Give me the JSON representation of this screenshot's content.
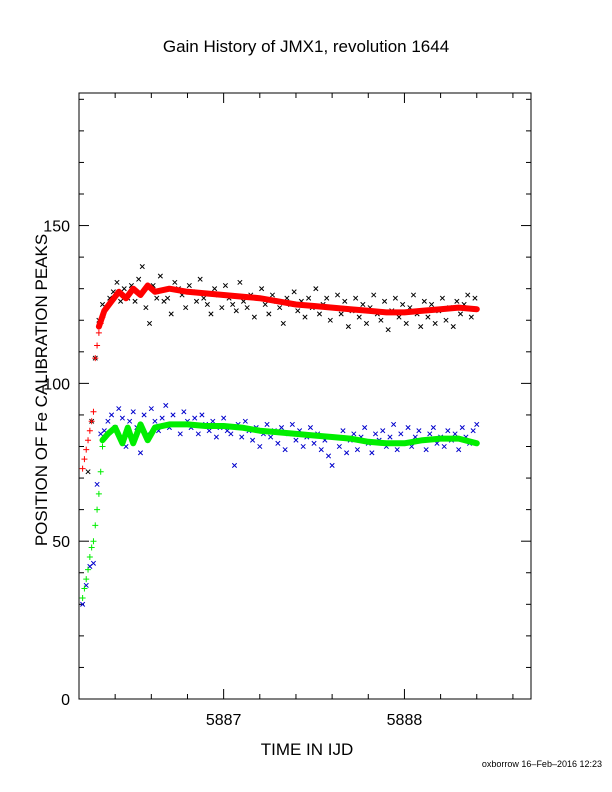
{
  "chart_data": {
    "type": "scatter",
    "title": "Gain History of JMX1, revolution 1644",
    "xlabel": "TIME IN IJD",
    "ylabel": "POSITION OF Fe CALIBRATION PEAKS",
    "xlim": [
      5886.2,
      5888.7
    ],
    "ylim": [
      0,
      192
    ],
    "x_ticks": [
      5887,
      5888
    ],
    "x_tick_labels": [
      "5887",
      "5888"
    ],
    "y_ticks": [
      0,
      50,
      100,
      150
    ],
    "y_tick_labels": [
      "0",
      "50",
      "100",
      "150"
    ],
    "grid": false,
    "footer": "oxborrow 16–Feb–2016 12:23",
    "colors": {
      "black": "#000000",
      "red": "#ff0000",
      "blue": "#0000cc",
      "green": "#00ee00"
    },
    "series": [
      {
        "marker": "x",
        "color": "#000000",
        "x": [
          5886.25,
          5886.27,
          5886.29,
          5886.31,
          5886.33,
          5886.35,
          5886.37,
          5886.39,
          5886.41,
          5886.43,
          5886.45,
          5886.47,
          5886.49,
          5886.51,
          5886.53,
          5886.55,
          5886.57,
          5886.59,
          5886.61,
          5886.63,
          5886.65,
          5886.67,
          5886.69,
          5886.71,
          5886.73,
          5886.75,
          5886.77,
          5886.79,
          5886.81,
          5886.83,
          5886.85,
          5886.87,
          5886.89,
          5886.91,
          5886.93,
          5886.95,
          5886.97,
          5886.99,
          5887.01,
          5887.03,
          5887.05,
          5887.07,
          5887.09,
          5887.11,
          5887.13,
          5887.15,
          5887.17,
          5887.19,
          5887.21,
          5887.23,
          5887.25,
          5887.27,
          5887.29,
          5887.31,
          5887.33,
          5887.35,
          5887.37,
          5887.39,
          5887.41,
          5887.43,
          5887.45,
          5887.47,
          5887.49,
          5887.51,
          5887.53,
          5887.55,
          5887.57,
          5887.59,
          5887.61,
          5887.63,
          5887.65,
          5887.67,
          5887.69,
          5887.71,
          5887.73,
          5887.75,
          5887.77,
          5887.79,
          5887.81,
          5887.83,
          5887.85,
          5887.87,
          5887.89,
          5887.91,
          5887.93,
          5887.95,
          5887.97,
          5887.99,
          5888.01,
          5888.03,
          5888.05,
          5888.07,
          5888.09,
          5888.11,
          5888.13,
          5888.15,
          5888.17,
          5888.19,
          5888.21,
          5888.23,
          5888.25,
          5888.27,
          5888.29,
          5888.31,
          5888.33,
          5888.35,
          5888.37,
          5888.39
        ],
        "y": [
          72,
          88,
          108,
          120,
          125,
          124,
          127,
          129,
          132,
          126,
          130,
          127,
          131,
          126,
          133,
          137,
          124,
          119,
          131,
          127,
          134,
          126,
          127,
          122,
          132,
          130,
          128,
          124,
          131,
          129,
          126,
          133,
          127,
          125,
          122,
          130,
          128,
          124,
          131,
          127,
          125,
          123,
          132,
          126,
          124,
          128,
          121,
          127,
          130,
          125,
          122,
          128,
          126,
          124,
          119,
          127,
          125,
          129,
          123,
          126,
          121,
          127,
          124,
          130,
          122,
          125,
          127,
          120,
          124,
          128,
          122,
          126,
          118,
          123,
          127,
          121,
          125,
          119,
          124,
          128,
          122,
          120,
          126,
          117,
          123,
          127,
          121,
          125,
          119,
          124,
          128,
          122,
          118,
          126,
          121,
          125,
          119,
          123,
          127,
          120,
          124,
          118,
          126,
          122,
          125,
          128,
          121,
          127
        ]
      },
      {
        "marker": "+",
        "color": "#ff0000",
        "x": [
          5886.22,
          5886.23,
          5886.24,
          5886.25,
          5886.26,
          5886.27,
          5886.28,
          5886.29,
          5886.3,
          5886.31,
          5886.32,
          5886.33
        ],
        "y": [
          73,
          76,
          79,
          82,
          85,
          88,
          91,
          108,
          112,
          116,
          119,
          121
        ]
      },
      {
        "marker": "x",
        "color": "#0000cc",
        "x": [
          5886.22,
          5886.24,
          5886.26,
          5886.28,
          5886.3,
          5886.32,
          5886.34,
          5886.36,
          5886.38,
          5886.4,
          5886.42,
          5886.44,
          5886.46,
          5886.48,
          5886.5,
          5886.52,
          5886.54,
          5886.56,
          5886.58,
          5886.6,
          5886.62,
          5886.64,
          5886.66,
          5886.68,
          5886.7,
          5886.72,
          5886.74,
          5886.76,
          5886.78,
          5886.8,
          5886.82,
          5886.84,
          5886.86,
          5886.88,
          5886.9,
          5886.92,
          5886.94,
          5886.96,
          5886.98,
          5887.0,
          5887.02,
          5887.04,
          5887.06,
          5887.08,
          5887.1,
          5887.12,
          5887.14,
          5887.16,
          5887.18,
          5887.2,
          5887.22,
          5887.24,
          5887.26,
          5887.28,
          5887.3,
          5887.32,
          5887.34,
          5887.36,
          5887.38,
          5887.4,
          5887.42,
          5887.44,
          5887.46,
          5887.48,
          5887.5,
          5887.52,
          5887.54,
          5887.56,
          5887.58,
          5887.6,
          5887.62,
          5887.64,
          5887.66,
          5887.68,
          5887.7,
          5887.72,
          5887.74,
          5887.76,
          5887.78,
          5887.8,
          5887.82,
          5887.84,
          5887.86,
          5887.88,
          5887.9,
          5887.92,
          5887.94,
          5887.96,
          5887.98,
          5888.0,
          5888.02,
          5888.04,
          5888.06,
          5888.08,
          5888.1,
          5888.12,
          5888.14,
          5888.16,
          5888.18,
          5888.2,
          5888.22,
          5888.24,
          5888.26,
          5888.28,
          5888.3,
          5888.32,
          5888.34,
          5888.36,
          5888.38,
          5888.4
        ],
        "y": [
          30,
          36,
          42,
          43,
          68,
          84,
          85,
          88,
          90,
          86,
          92,
          89,
          80,
          88,
          91,
          86,
          78,
          90,
          84,
          92,
          88,
          85,
          89,
          93,
          86,
          90,
          87,
          84,
          91,
          88,
          86,
          89,
          84,
          90,
          87,
          85,
          88,
          83,
          86,
          89,
          85,
          84,
          74,
          87,
          83,
          88,
          85,
          82,
          86,
          80,
          84,
          87,
          83,
          85,
          81,
          86,
          79,
          84,
          87,
          82,
          85,
          80,
          83,
          86,
          81,
          84,
          79,
          82,
          77,
          74,
          83,
          80,
          85,
          78,
          82,
          84,
          79,
          83,
          86,
          81,
          78,
          84,
          82,
          85,
          80,
          83,
          87,
          79,
          84,
          81,
          86,
          80,
          83,
          85,
          82,
          79,
          84,
          86,
          81,
          83,
          80,
          85,
          82,
          84,
          79,
          86,
          83,
          81,
          85,
          87
        ]
      },
      {
        "marker": "+",
        "color": "#00ee00",
        "x": [
          5886.22,
          5886.23,
          5886.24,
          5886.25,
          5886.26,
          5886.27,
          5886.28,
          5886.29,
          5886.3,
          5886.31,
          5886.32,
          5886.33
        ],
        "y": [
          32,
          35,
          38,
          41,
          45,
          48,
          50,
          55,
          60,
          65,
          72,
          80
        ]
      },
      {
        "marker": "line",
        "color": "#ff0000",
        "x": [
          5886.31,
          5886.34,
          5886.38,
          5886.42,
          5886.46,
          5886.5,
          5886.54,
          5886.58,
          5886.62,
          5886.7,
          5886.8,
          5886.9,
          5887.0,
          5887.1,
          5887.2,
          5887.3,
          5887.4,
          5887.5,
          5887.6,
          5887.7,
          5887.8,
          5887.9,
          5888.0,
          5888.1,
          5888.2,
          5888.3,
          5888.4
        ],
        "y": [
          118,
          123,
          126,
          129,
          127,
          130,
          128,
          131,
          129,
          130,
          129,
          128.5,
          128,
          127.5,
          127,
          126,
          125,
          124.5,
          124,
          123.5,
          123,
          122.5,
          122.5,
          123,
          123.5,
          124,
          123.5
        ]
      },
      {
        "marker": "line",
        "color": "#00ee00",
        "x": [
          5886.33,
          5886.36,
          5886.4,
          5886.44,
          5886.47,
          5886.5,
          5886.54,
          5886.58,
          5886.62,
          5886.7,
          5886.8,
          5886.9,
          5887.0,
          5887.1,
          5887.2,
          5887.3,
          5887.4,
          5887.5,
          5887.6,
          5887.7,
          5887.8,
          5887.9,
          5888.0,
          5888.1,
          5888.2,
          5888.3,
          5888.4
        ],
        "y": [
          82,
          84,
          86,
          81,
          86,
          81,
          87,
          82,
          86,
          87,
          87,
          86.5,
          86.5,
          86,
          85,
          84.5,
          84,
          83.5,
          83,
          82.5,
          81.5,
          81,
          81,
          82,
          82.5,
          82.5,
          81
        ]
      }
    ]
  }
}
